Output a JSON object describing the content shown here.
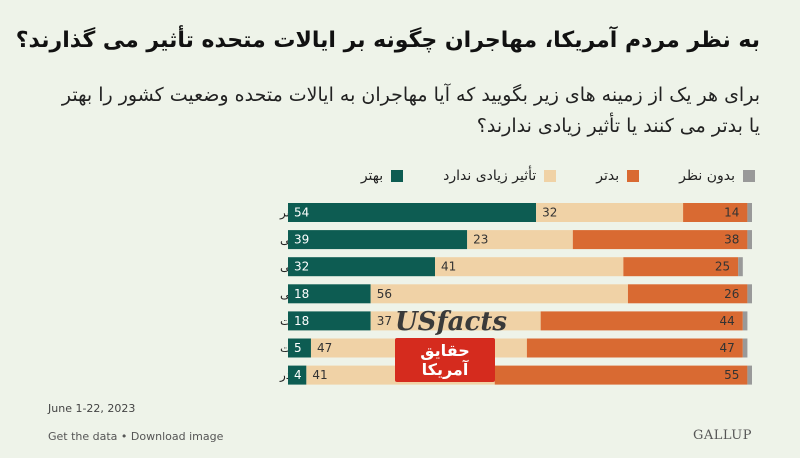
{
  "title": "به نظر مردم آمریکا، مهاجران چگونه بر ایالات متحده تأثیر می گذارند؟",
  "subtitle": "برای هر یک از زمینه های زیر بگویید که آیا مهاجران به ایالات متحده وضعیت کشور را بهتر یا بدتر می کنند یا تأثیر زیادی ندارند؟",
  "legend": [
    {
      "label": "بهتر",
      "color": "#0d5c52"
    },
    {
      "label": "تأثیر زیادی ندارد",
      "color": "#f0d2a6"
    },
    {
      "label": "بدتر",
      "color": "#d96a32"
    },
    {
      "label": "بدون نظر",
      "color": "#999999"
    }
  ],
  "chart_data": {
    "type": "bar",
    "orientation": "horizontal-stacked",
    "xlim": [
      0,
      100
    ],
    "categories": [
      "غذا، موسیقی و هنر",
      "اقتصاد به طور کلی",
      "ارزش های اخلاقی و اجتماعی",
      "فرصت های شغلی",
      "مالیات",
      "وضعیت جرم و جنایت",
      "مسئله مواد مخدر"
    ],
    "series": [
      {
        "name": "بهتر",
        "color": "#0d5c52",
        "values": [
          54,
          39,
          32,
          18,
          18,
          5,
          4
        ]
      },
      {
        "name": "تأثیر زیادی ندارد",
        "color": "#f0d2a6",
        "values": [
          32,
          23,
          41,
          56,
          37,
          47,
          41
        ]
      },
      {
        "name": "بدتر",
        "color": "#d96a32",
        "values": [
          14,
          38,
          25,
          26,
          44,
          47,
          55
        ]
      },
      {
        "name": "بدون نظر",
        "color": "#999999",
        "values": [
          1,
          1,
          1,
          1,
          1,
          1,
          1
        ]
      }
    ],
    "label_colors": [
      "#ffffff",
      "#333333",
      "#333333",
      "#333333"
    ],
    "labeled_series": [
      0,
      1,
      2
    ]
  },
  "date": "June 1-22, 2023",
  "footer": "Get the data • Download image",
  "brand": "GALLUP",
  "watermark": {
    "top": "USfacts",
    "line1": "حقایق",
    "line2": "آمریکا"
  }
}
